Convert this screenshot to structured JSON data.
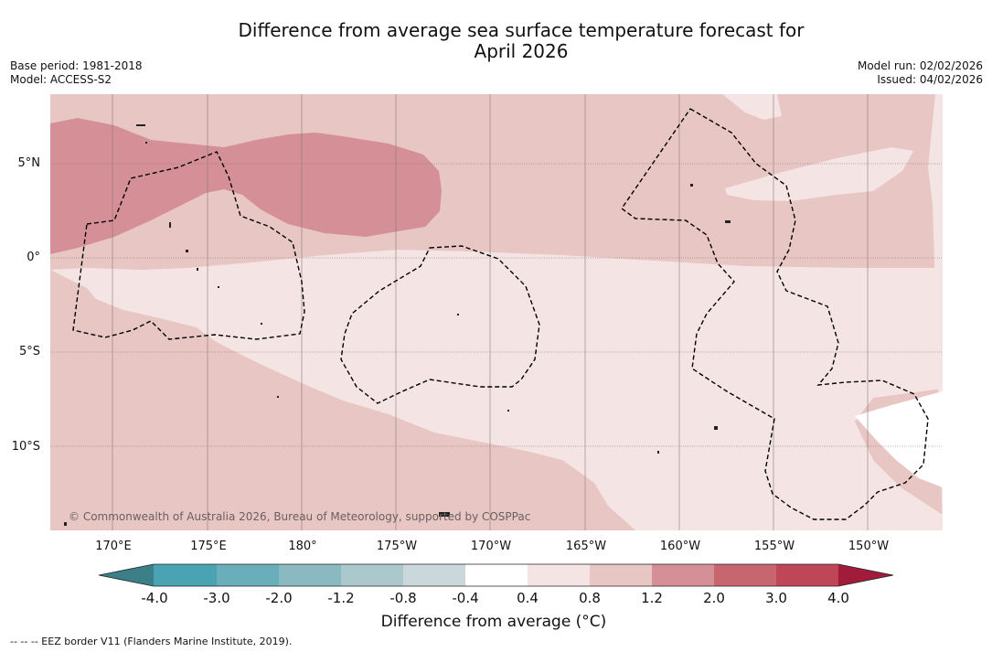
{
  "title": {
    "line1": "Difference from average sea surface temperature forecast for",
    "line2": "April 2026"
  },
  "meta_left": {
    "base_period": "Base period: 1981-2018",
    "model": "Model: ACCESS-S2"
  },
  "meta_right": {
    "model_run": "Model run: 02/02/2026",
    "issued": "Issued: 04/02/2026"
  },
  "map": {
    "lat_labels": [
      "5°N",
      "0°",
      "5°S",
      "10°S"
    ],
    "lon_labels": [
      "170°E",
      "175°E",
      "180°",
      "175°W",
      "170°W",
      "165°W",
      "160°W",
      "155°W",
      "150°W"
    ],
    "copyright": "© Commonwealth of Australia 2026, Bureau of Meteorology, supported by COSPPac"
  },
  "colorbar": {
    "ticks": [
      "-4.0",
      "-3.0",
      "-2.0",
      "-1.2",
      "-0.8",
      "-0.4",
      "0.4",
      "0.8",
      "1.2",
      "2.0",
      "3.0",
      "4.0"
    ],
    "colors": [
      "#3d7f88",
      "#4aa3b3",
      "#6aaebb",
      "#8bb9c2",
      "#abc9cd",
      "#cad8db",
      "#ffffff",
      "#f4e5e4",
      "#e8c6c3",
      "#d59097",
      "#c7666f",
      "#bf4656",
      "#a31b3a"
    ],
    "label": "Difference from average ($^\\circ$C)",
    "label_display": "Difference from average (°C)"
  },
  "footnote": "--  --  -- EEZ border V11 (Flanders Marine Institute, 2019)."
}
